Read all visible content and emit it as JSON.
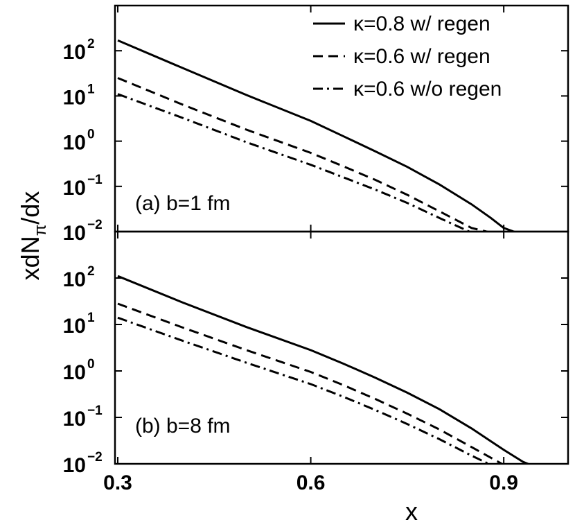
{
  "chart_data": {
    "type": "line",
    "xlabel": "x",
    "ylabel": {
      "main": "xdN",
      "sub": "π",
      "tail": "/dx"
    },
    "xlim": [
      0.3,
      1.0
    ],
    "ylim": [
      0.01,
      1000
    ],
    "yscale": "log",
    "xticks": [
      0.3,
      0.6,
      0.9
    ],
    "xtick_labels": [
      "0.3",
      "0.6",
      "0.9"
    ],
    "yticks": [
      {
        "value": 100,
        "base": "10",
        "exp": "2"
      },
      {
        "value": 10,
        "base": "10",
        "exp": "1"
      },
      {
        "value": 1,
        "base": "10",
        "exp": "0"
      },
      {
        "value": 0.1,
        "base": "10",
        "exp": "−1"
      },
      {
        "value": 0.01,
        "base": "10",
        "exp": "−2"
      }
    ],
    "legend": {
      "placement": "top-right",
      "entries": [
        {
          "label": "κ=0.8 w/ regen",
          "style": "solid"
        },
        {
          "label": "κ=0.6 w/ regen",
          "style": "dashed"
        },
        {
          "label": "κ=0.6 w/o regen",
          "style": "dashdot"
        }
      ]
    },
    "panels": [
      {
        "label": "(a) b=1 fm",
        "series": [
          {
            "style": "solid",
            "x": [
              0.3,
              0.4,
              0.5,
              0.6,
              0.65,
              0.7,
              0.75,
              0.8,
              0.85,
              0.88,
              0.9,
              0.92
            ],
            "y": [
              170,
              42,
              10.5,
              2.8,
              1.3,
              0.6,
              0.27,
              0.11,
              0.04,
              0.02,
              0.012,
              0.0095
            ]
          },
          {
            "style": "dashed",
            "x": [
              0.3,
              0.4,
              0.5,
              0.6,
              0.65,
              0.7,
              0.75,
              0.8,
              0.85,
              0.88,
              0.9
            ],
            "y": [
              25,
              6.5,
              1.8,
              0.55,
              0.28,
              0.14,
              0.065,
              0.028,
              0.012,
              0.0095,
              0.007
            ]
          },
          {
            "style": "dashdot",
            "x": [
              0.3,
              0.4,
              0.5,
              0.6,
              0.65,
              0.7,
              0.75,
              0.8,
              0.85,
              0.88
            ],
            "y": [
              11,
              3.3,
              0.95,
              0.3,
              0.16,
              0.085,
              0.043,
              0.02,
              0.0095,
              0.007
            ]
          }
        ]
      },
      {
        "label": "(b) b=8 fm",
        "series": [
          {
            "style": "solid",
            "x": [
              0.3,
              0.4,
              0.5,
              0.6,
              0.65,
              0.7,
              0.75,
              0.8,
              0.85,
              0.9,
              0.93,
              0.95
            ],
            "y": [
              110,
              30,
              8.8,
              2.8,
              1.45,
              0.72,
              0.34,
              0.15,
              0.058,
              0.02,
              0.011,
              0.0085
            ]
          },
          {
            "style": "dashed",
            "x": [
              0.3,
              0.4,
              0.5,
              0.6,
              0.65,
              0.7,
              0.75,
              0.8,
              0.85,
              0.9,
              0.93
            ],
            "y": [
              28,
              8.7,
              2.8,
              0.95,
              0.5,
              0.25,
              0.12,
              0.055,
              0.023,
              0.0095,
              0.007
            ]
          },
          {
            "style": "dashdot",
            "x": [
              0.3,
              0.4,
              0.5,
              0.6,
              0.65,
              0.7,
              0.75,
              0.8,
              0.85,
              0.88,
              0.91
            ],
            "y": [
              14,
              4.5,
              1.5,
              0.52,
              0.28,
              0.145,
              0.072,
              0.034,
              0.015,
              0.0095,
              0.007
            ]
          }
        ]
      }
    ]
  }
}
